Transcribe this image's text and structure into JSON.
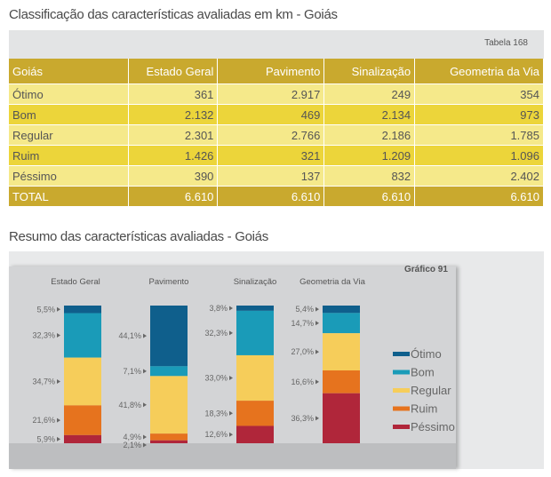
{
  "table_title": "Classificação das características avaliadas em km -  Goiás",
  "table_number": "Tabela 168",
  "table": {
    "headers": [
      "Goiás",
      "Estado Geral",
      "Pavimento",
      "Sinalização",
      "Geometria da Via"
    ],
    "rows": [
      [
        "Ótimo",
        "361",
        "2.917",
        "249",
        "354"
      ],
      [
        "Bom",
        "2.132",
        "469",
        "2.134",
        "973"
      ],
      [
        "Regular",
        "2.301",
        "2.766",
        "2.186",
        "1.785"
      ],
      [
        "Ruim",
        "1.426",
        "321",
        "1.209",
        "1.096"
      ],
      [
        "Péssimo",
        "390",
        "137",
        "832",
        "2.402"
      ],
      [
        "TOTAL",
        "6.610",
        "6.610",
        "6.610",
        "6.610"
      ]
    ]
  },
  "chart_title": "Resumo das características avaliadas - Goiás",
  "chart_number": "Gráfico 91",
  "chart_data": {
    "type": "bar",
    "stacked": true,
    "percent": true,
    "categories": [
      "Estado Geral",
      "Pavimento",
      "Sinalização",
      "Geometria da Via"
    ],
    "series": [
      {
        "name": "Ótimo",
        "color": "#0f5f8c",
        "values": [
          5.5,
          44.1,
          3.8,
          5.4
        ],
        "labels": [
          "5,5%",
          "44,1%",
          "3,8%",
          "5,4%"
        ]
      },
      {
        "name": "Bom",
        "color": "#1a9bb8",
        "values": [
          32.3,
          7.1,
          32.3,
          14.7
        ],
        "labels": [
          "32,3%",
          "7,1%",
          "32,3%",
          "14,7%"
        ]
      },
      {
        "name": "Regular",
        "color": "#f6cd5a",
        "values": [
          34.7,
          41.8,
          33.0,
          27.0
        ],
        "labels": [
          "34,7%",
          "41,8%",
          "33,0%",
          "27,0%"
        ]
      },
      {
        "name": "Ruim",
        "color": "#e6731e",
        "values": [
          21.6,
          4.9,
          18.3,
          16.6
        ],
        "labels": [
          "21,6%",
          "4,9%",
          "18,3%",
          "16,6%"
        ]
      },
      {
        "name": "Péssimo",
        "color": "#b0263a",
        "values": [
          5.9,
          2.1,
          12.6,
          36.3
        ],
        "labels": [
          "5,9%",
          "2,1%",
          "12,6%",
          "36,3%"
        ]
      }
    ],
    "legend": "right"
  }
}
